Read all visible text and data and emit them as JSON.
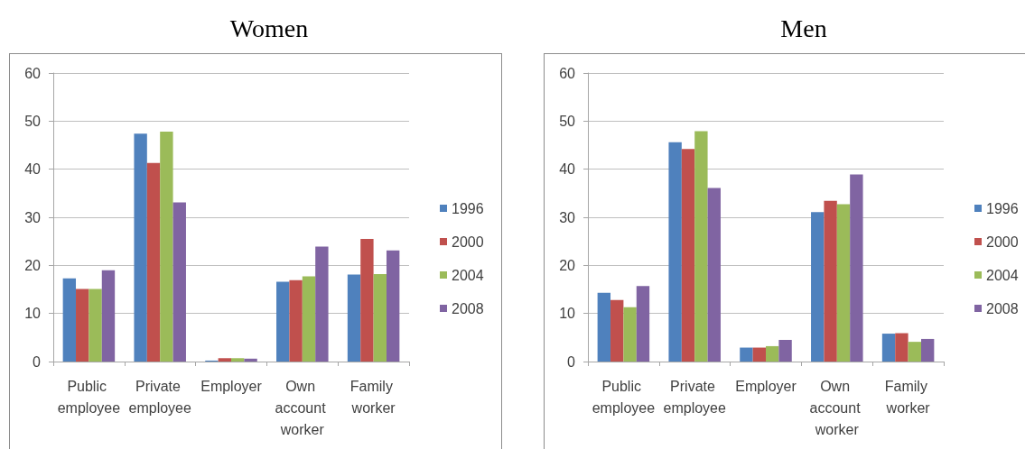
{
  "chart_data": [
    {
      "type": "bar",
      "title": "Women",
      "categories": [
        "Public employee",
        "Private employee",
        "Employer",
        "Own account worker",
        "Family worker"
      ],
      "series": [
        {
          "name": "1996",
          "color": "#4f81bd",
          "values": [
            17.3,
            47.4,
            0.2,
            16.6,
            18.1
          ]
        },
        {
          "name": "2000",
          "color": "#c0504d",
          "values": [
            15.1,
            41.3,
            0.7,
            16.9,
            25.5
          ]
        },
        {
          "name": "2004",
          "color": "#9bbb59",
          "values": [
            15.1,
            47.8,
            0.7,
            17.7,
            18.2
          ]
        },
        {
          "name": "2008",
          "color": "#8064a2",
          "values": [
            19.0,
            33.1,
            0.6,
            23.9,
            23.1
          ]
        }
      ],
      "ylim": [
        0,
        60
      ],
      "yticks": [
        0,
        10,
        20,
        30,
        40,
        50,
        60
      ],
      "grid": "y",
      "legend": "right"
    },
    {
      "type": "bar",
      "title": "Men",
      "categories": [
        "Public employee",
        "Private employee",
        "Employer",
        "Own account worker",
        "Family worker"
      ],
      "series": [
        {
          "name": "1996",
          "color": "#4f81bd",
          "values": [
            14.3,
            45.6,
            2.9,
            31.1,
            5.8
          ]
        },
        {
          "name": "2000",
          "color": "#c0504d",
          "values": [
            12.8,
            44.2,
            2.9,
            33.4,
            5.9
          ]
        },
        {
          "name": "2004",
          "color": "#9bbb59",
          "values": [
            11.3,
            47.9,
            3.2,
            32.7,
            4.1
          ]
        },
        {
          "name": "2008",
          "color": "#8064a2",
          "values": [
            15.7,
            36.1,
            4.5,
            38.9,
            4.7
          ]
        }
      ],
      "ylim": [
        0,
        60
      ],
      "yticks": [
        0,
        10,
        20,
        30,
        40,
        50,
        60
      ],
      "grid": "y",
      "legend": "right"
    }
  ]
}
